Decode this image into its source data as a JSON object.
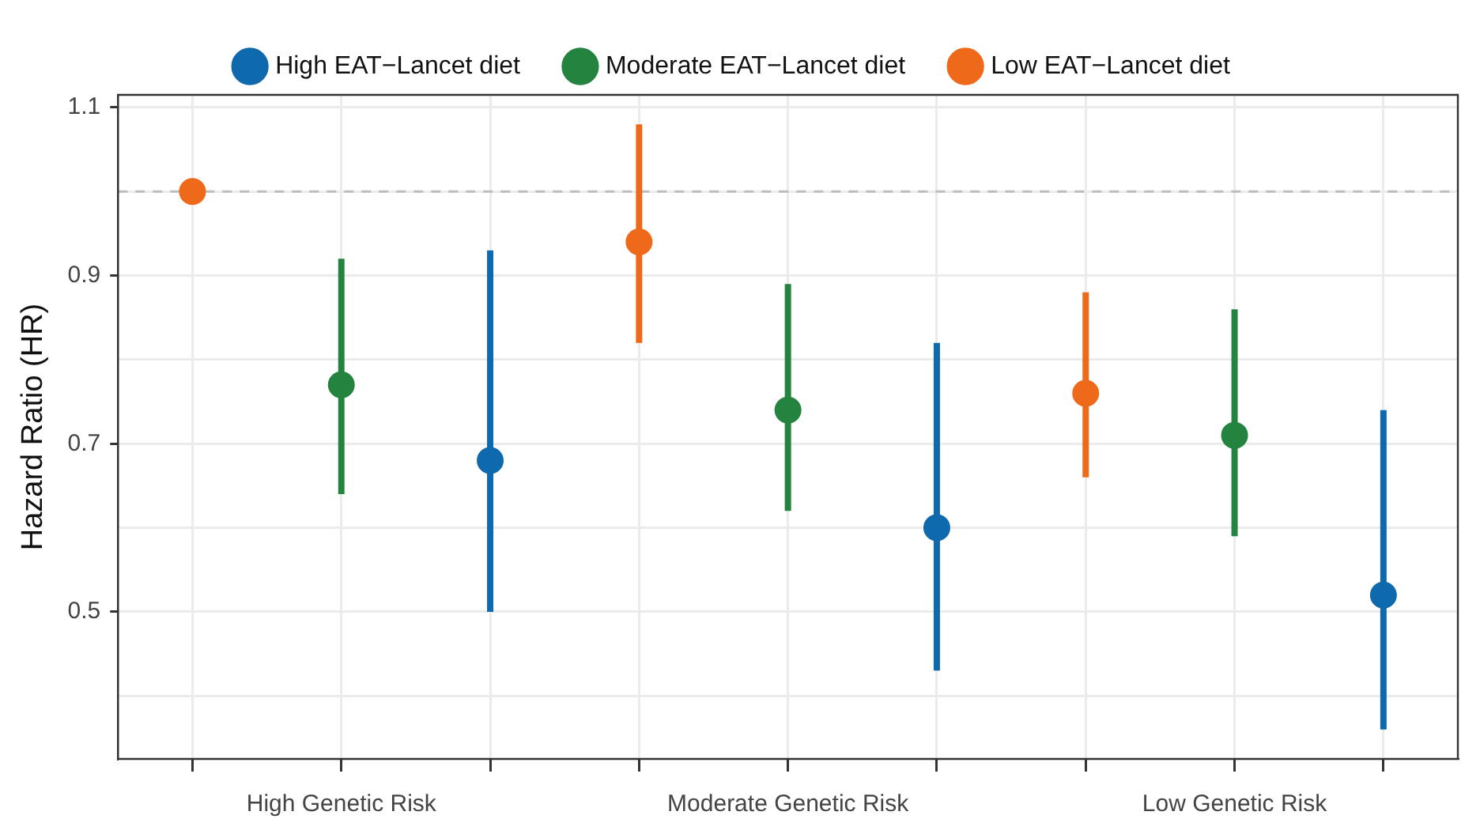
{
  "chart_data": {
    "type": "scatter",
    "ylabel": "Hazard Ratio (HR)",
    "categories": [
      null,
      "High Genetic Risk",
      null,
      null,
      "Moderate Genetic Risk",
      null,
      null,
      "Low Genetic Risk",
      null
    ],
    "series": [
      {
        "name": "High EAT−Lancet diet",
        "color": "#0f6aad",
        "values": [
          null,
          null,
          0.68,
          null,
          null,
          0.6,
          null,
          null,
          0.52
        ],
        "errors": [
          null,
          null,
          [
            0.5,
            0.93
          ],
          null,
          null,
          [
            0.43,
            0.82
          ],
          null,
          null,
          [
            0.36,
            0.74
          ]
        ]
      },
      {
        "name": "Moderate EAT−Lancet diet",
        "color": "#24843f",
        "values": [
          null,
          0.77,
          null,
          null,
          0.74,
          null,
          null,
          0.71,
          null
        ],
        "errors": [
          null,
          [
            0.64,
            0.92
          ],
          null,
          null,
          [
            0.62,
            0.89
          ],
          null,
          null,
          [
            0.59,
            0.86
          ],
          null
        ]
      },
      {
        "name": "Low EAT−Lancet diet",
        "color": "#ee6a1a",
        "values": [
          1.0,
          null,
          null,
          0.94,
          null,
          null,
          0.76,
          null,
          null
        ],
        "errors": [
          null,
          null,
          null,
          [
            0.82,
            1.08
          ],
          null,
          null,
          [
            0.66,
            0.88
          ],
          null,
          null
        ]
      }
    ],
    "ylim": [
      0.325,
      1.115
    ],
    "yticks": [
      {
        "value": 0.4,
        "label": null
      },
      0.5,
      {
        "value": 0.6,
        "label": null
      },
      0.7,
      {
        "value": 0.8,
        "label": null
      },
      0.9,
      {
        "value": 1.0,
        "label": null
      },
      1.1
    ],
    "ref_lines": [
      {
        "axis": "y",
        "value": 1.0,
        "color": "#bdbdbd",
        "line_style": "dashed"
      }
    ],
    "grid": true,
    "legend": "top",
    "marker": "circle"
  }
}
